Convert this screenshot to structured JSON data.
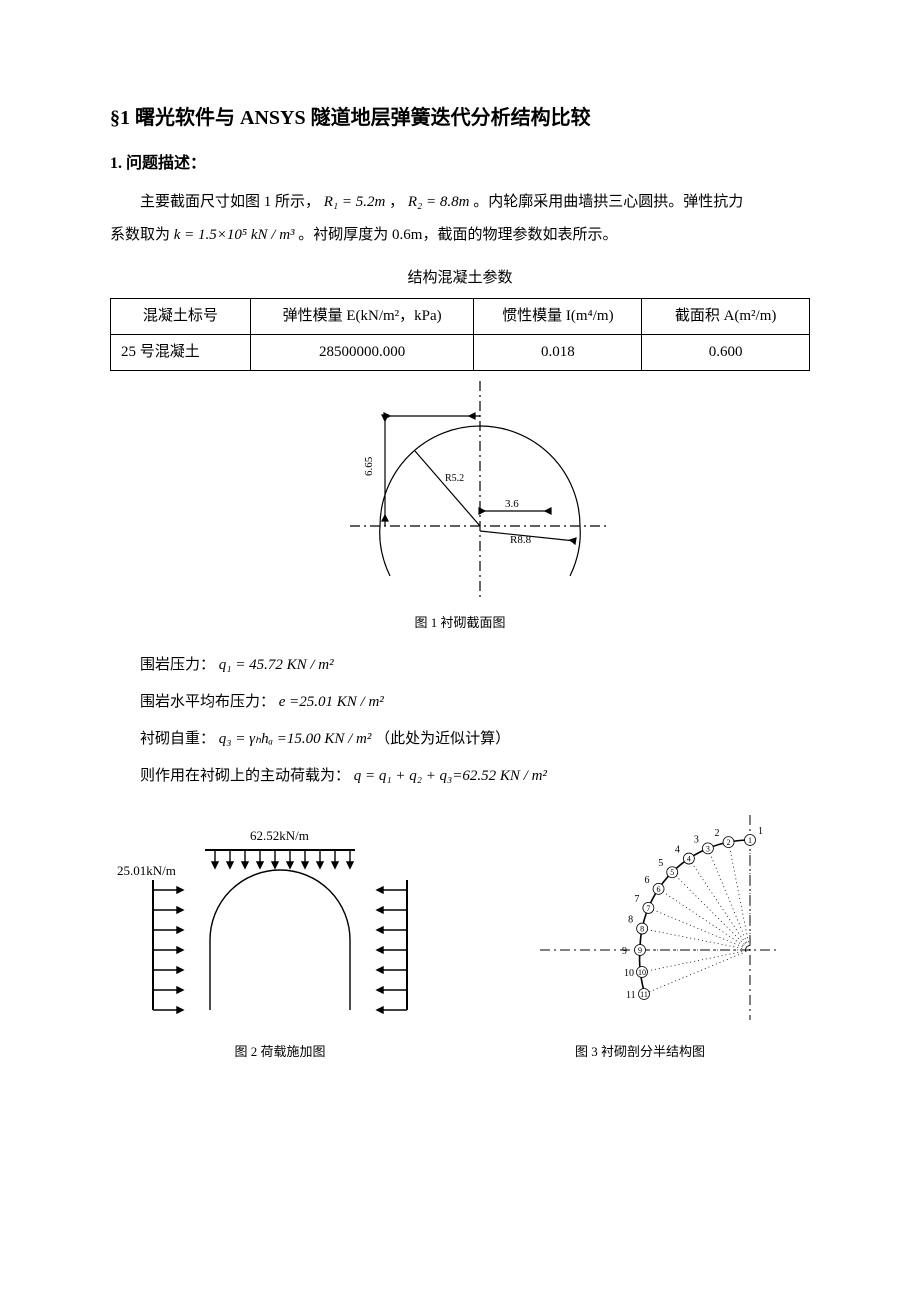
{
  "title": "§1 曙光软件与 ANSYS 隧道地层弹簧迭代分析结构比较",
  "section1_heading": "1. 问题描述：",
  "para1_a": "主要截面尺寸如图 1 所示，",
  "para1_R1": "R₁ = 5.2m",
  "para1_mid": " ， ",
  "para1_R2": "R₂ = 8.8m",
  "para1_b": " 。内轮廓采用曲墙拱三心圆拱。弹性抗力",
  "para2_a": "系数取为",
  "para2_k": "k = 1.5×10⁵ kN / m³",
  "para2_b": " 。衬砌厚度为 0.6m，截面的物理参数如表所示。",
  "table_caption": "结构混凝土参数",
  "table": {
    "headers": [
      "混凝土标号",
      "弹性模量 E(kN/m²，kPa)",
      "惯性模量 I(m⁴/m)",
      "截面积 A(m²/m)"
    ],
    "row": [
      "25 号混凝土",
      "28500000.000",
      "0.018",
      "0.600"
    ],
    "col_widths": [
      "20%",
      "32%",
      "24%",
      "24%"
    ]
  },
  "fig1": {
    "caption": "图 1 衬砌截面图",
    "dim_height": "6.65",
    "dim_r1": "R5.2",
    "dim_width": "3.6",
    "dim_r2": "R8.8",
    "stroke": "#000000",
    "dash": "6,4"
  },
  "loads": {
    "line1_label": "围岩压力：",
    "line1_expr": "q₁ = 45.72 KN / m²",
    "line2_label": "围岩水平均布压力：",
    "line2_expr": "e =25.01 KN / m²",
    "line3_label": "衬砌自重：",
    "line3_expr_a": "q₃ = γₕhₐ =15.00 KN / m²",
    "line3_note": " （此处为近似计算）",
    "line4_label": "则作用在衬砌上的主动荷载为：",
    "line4_expr": " q = q₁ + q₂ + q₃=62.52 KN / m²"
  },
  "fig2": {
    "caption": "图 2 荷载施加图",
    "top_load": "62.52kN/m",
    "side_load": "25.01kN/m",
    "stroke": "#000000"
  },
  "fig3": {
    "caption": "图 3 衬砌剖分半结构图",
    "node_labels": [
      "1",
      "2",
      "3",
      "4",
      "5",
      "6",
      "7",
      "8",
      "9",
      "10",
      "11"
    ],
    "stroke": "#000000",
    "dotted": "1,3",
    "dash": "6,4"
  },
  "colors": {
    "text": "#000000",
    "bg": "#ffffff"
  },
  "fonts": {
    "body_family": "SimSun, Times New Roman, serif",
    "body_size_pt": 11,
    "h1_size_pt": 15,
    "caption_size_pt": 10
  }
}
